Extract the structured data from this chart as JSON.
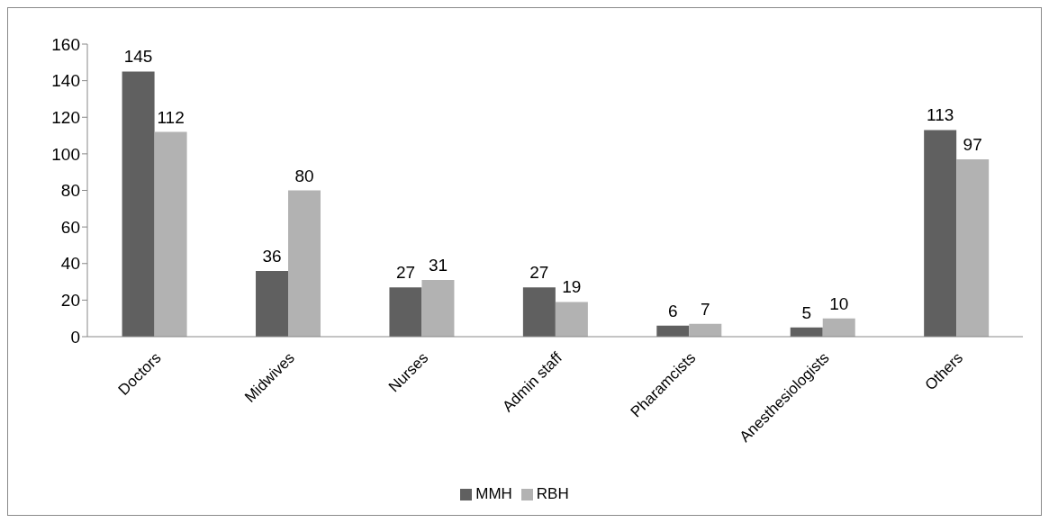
{
  "chart_data": {
    "type": "bar",
    "categories": [
      "Doctors",
      "Midwives",
      "Nurses",
      "Admin staff",
      "Pharamcists",
      "Anesthesiologists",
      "Others"
    ],
    "series": [
      {
        "name": "MMH",
        "color": "#606060",
        "values": [
          145,
          36,
          27,
          27,
          6,
          5,
          113
        ]
      },
      {
        "name": "RBH",
        "color": "#b2b2b2",
        "values": [
          112,
          80,
          31,
          19,
          7,
          10,
          97
        ]
      }
    ],
    "ylim": [
      0,
      160
    ],
    "yticks": [
      0,
      20,
      40,
      60,
      80,
      100,
      120,
      140,
      160
    ],
    "grid": false,
    "legend": "bottom",
    "data_labels": true
  }
}
